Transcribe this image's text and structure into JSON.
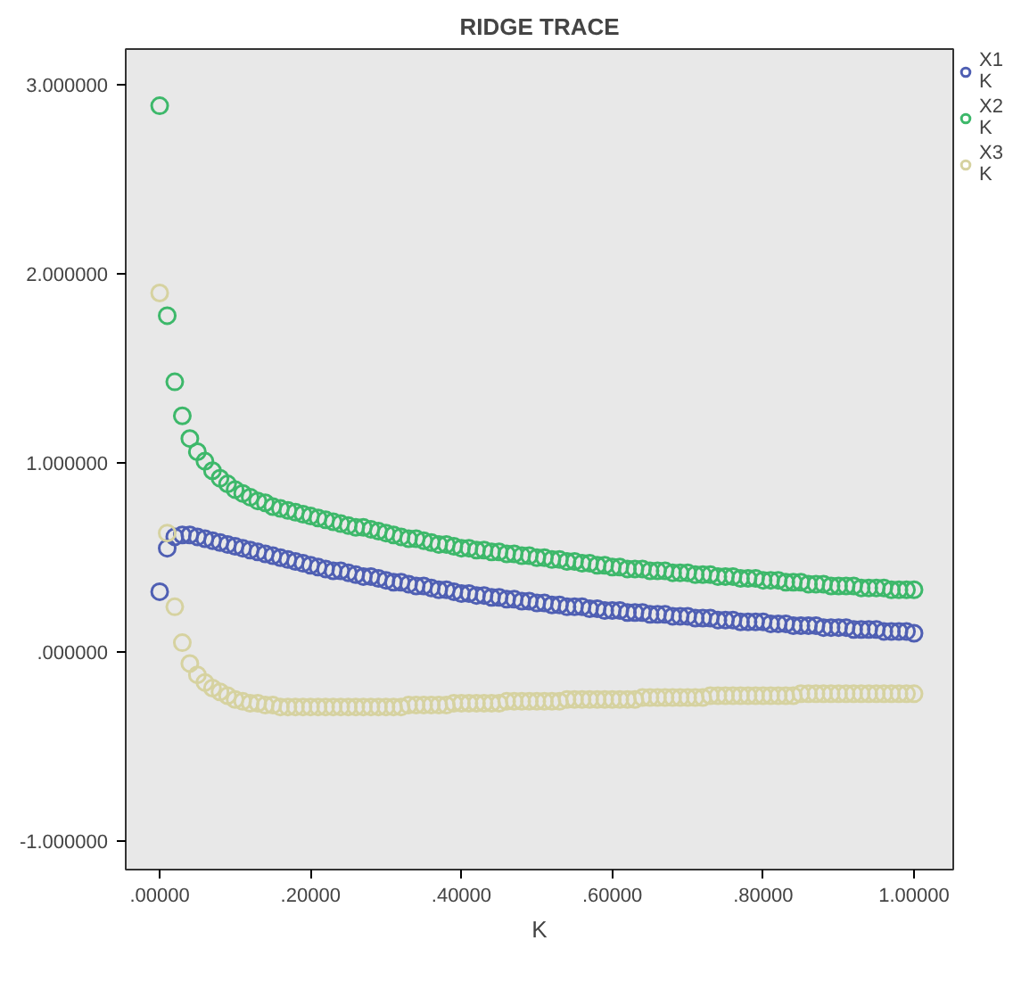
{
  "chart_data": {
    "type": "scatter",
    "title": "RIDGE TRACE",
    "xlabel": "K",
    "marker": "circle",
    "grid": false,
    "legend": "right",
    "x": [
      0,
      0.01,
      0.02,
      0.03,
      0.04,
      0.05,
      0.06,
      0.07,
      0.08,
      0.09,
      0.1,
      0.11,
      0.12,
      0.13,
      0.14,
      0.15,
      0.16,
      0.17,
      0.18,
      0.19,
      0.2,
      0.21,
      0.22,
      0.23,
      0.24,
      0.25,
      0.26,
      0.27,
      0.28,
      0.29,
      0.3,
      0.31,
      0.32,
      0.33,
      0.34,
      0.35,
      0.36,
      0.37,
      0.38,
      0.39,
      0.4,
      0.41,
      0.42,
      0.43,
      0.44,
      0.45,
      0.46,
      0.47,
      0.48,
      0.49,
      0.5,
      0.51,
      0.52,
      0.53,
      0.54,
      0.55,
      0.56,
      0.57,
      0.58,
      0.59,
      0.6,
      0.61,
      0.62,
      0.63,
      0.64,
      0.65,
      0.66,
      0.67,
      0.68,
      0.69,
      0.7,
      0.71,
      0.72,
      0.73,
      0.74,
      0.75,
      0.76,
      0.77,
      0.78,
      0.79,
      0.8,
      0.81,
      0.82,
      0.83,
      0.84,
      0.85,
      0.86,
      0.87,
      0.88,
      0.89,
      0.9,
      0.91,
      0.92,
      0.93,
      0.94,
      0.95,
      0.96,
      0.97,
      0.98,
      0.99,
      1.0
    ],
    "series": [
      {
        "name": "X1\nK",
        "color": "#4f5fb3",
        "values": [
          0.32,
          0.55,
          0.61,
          0.62,
          0.62,
          0.61,
          0.6,
          0.59,
          0.58,
          0.57,
          0.56,
          0.55,
          0.54,
          0.53,
          0.52,
          0.51,
          0.5,
          0.49,
          0.48,
          0.47,
          0.46,
          0.45,
          0.44,
          0.43,
          0.43,
          0.42,
          0.41,
          0.4,
          0.4,
          0.39,
          0.38,
          0.37,
          0.37,
          0.36,
          0.35,
          0.35,
          0.34,
          0.33,
          0.33,
          0.32,
          0.31,
          0.31,
          0.3,
          0.3,
          0.29,
          0.29,
          0.28,
          0.28,
          0.27,
          0.27,
          0.26,
          0.26,
          0.25,
          0.25,
          0.24,
          0.24,
          0.24,
          0.23,
          0.23,
          0.22,
          0.22,
          0.22,
          0.21,
          0.21,
          0.21,
          0.2,
          0.2,
          0.2,
          0.19,
          0.19,
          0.19,
          0.18,
          0.18,
          0.18,
          0.17,
          0.17,
          0.17,
          0.16,
          0.16,
          0.16,
          0.16,
          0.15,
          0.15,
          0.15,
          0.14,
          0.14,
          0.14,
          0.14,
          0.13,
          0.13,
          0.13,
          0.13,
          0.12,
          0.12,
          0.12,
          0.12,
          0.11,
          0.11,
          0.11,
          0.11,
          0.1
        ]
      },
      {
        "name": "X2\nK",
        "color": "#3db86a",
        "values": [
          2.89,
          1.78,
          1.43,
          1.25,
          1.13,
          1.06,
          1.01,
          0.96,
          0.92,
          0.89,
          0.86,
          0.84,
          0.82,
          0.8,
          0.79,
          0.77,
          0.76,
          0.75,
          0.74,
          0.73,
          0.72,
          0.71,
          0.7,
          0.69,
          0.68,
          0.67,
          0.66,
          0.66,
          0.65,
          0.64,
          0.63,
          0.62,
          0.61,
          0.6,
          0.6,
          0.59,
          0.58,
          0.57,
          0.57,
          0.56,
          0.55,
          0.55,
          0.54,
          0.54,
          0.53,
          0.53,
          0.52,
          0.52,
          0.51,
          0.51,
          0.5,
          0.5,
          0.49,
          0.49,
          0.48,
          0.48,
          0.47,
          0.47,
          0.46,
          0.46,
          0.45,
          0.45,
          0.44,
          0.44,
          0.44,
          0.43,
          0.43,
          0.43,
          0.42,
          0.42,
          0.42,
          0.41,
          0.41,
          0.41,
          0.4,
          0.4,
          0.4,
          0.39,
          0.39,
          0.39,
          0.38,
          0.38,
          0.38,
          0.37,
          0.37,
          0.37,
          0.36,
          0.36,
          0.36,
          0.35,
          0.35,
          0.35,
          0.35,
          0.34,
          0.34,
          0.34,
          0.34,
          0.33,
          0.33,
          0.33,
          0.33
        ]
      },
      {
        "name": "X3\nK",
        "color": "#d6d2a0",
        "values": [
          1.9,
          0.63,
          0.24,
          0.05,
          -0.06,
          -0.12,
          -0.16,
          -0.19,
          -0.21,
          -0.23,
          -0.25,
          -0.26,
          -0.27,
          -0.27,
          -0.28,
          -0.28,
          -0.29,
          -0.29,
          -0.29,
          -0.29,
          -0.29,
          -0.29,
          -0.29,
          -0.29,
          -0.29,
          -0.29,
          -0.29,
          -0.29,
          -0.29,
          -0.29,
          -0.29,
          -0.29,
          -0.29,
          -0.28,
          -0.28,
          -0.28,
          -0.28,
          -0.28,
          -0.28,
          -0.27,
          -0.27,
          -0.27,
          -0.27,
          -0.27,
          -0.27,
          -0.27,
          -0.26,
          -0.26,
          -0.26,
          -0.26,
          -0.26,
          -0.26,
          -0.26,
          -0.26,
          -0.25,
          -0.25,
          -0.25,
          -0.25,
          -0.25,
          -0.25,
          -0.25,
          -0.25,
          -0.25,
          -0.25,
          -0.24,
          -0.24,
          -0.24,
          -0.24,
          -0.24,
          -0.24,
          -0.24,
          -0.24,
          -0.24,
          -0.23,
          -0.23,
          -0.23,
          -0.23,
          -0.23,
          -0.23,
          -0.23,
          -0.23,
          -0.23,
          -0.23,
          -0.23,
          -0.23,
          -0.22,
          -0.22,
          -0.22,
          -0.22,
          -0.22,
          -0.22,
          -0.22,
          -0.22,
          -0.22,
          -0.22,
          -0.22,
          -0.22,
          -0.22,
          -0.22,
          -0.22,
          -0.22
        ]
      }
    ],
    "xlim": [
      -0.045,
      1.052
    ],
    "ylim": [
      -1.15,
      3.19
    ],
    "xticks": [
      {
        "value": 0,
        "label": ".00000"
      },
      {
        "value": 0.2,
        "label": ".20000"
      },
      {
        "value": 0.4,
        "label": ".40000"
      },
      {
        "value": 0.6,
        "label": ".60000"
      },
      {
        "value": 0.8,
        "label": ".80000"
      },
      {
        "value": 1.0,
        "label": "1.00000"
      }
    ],
    "yticks": [
      {
        "value": -1,
        "label": "-1.000000"
      },
      {
        "value": 0,
        "label": ".000000"
      },
      {
        "value": 1,
        "label": "1.000000"
      },
      {
        "value": 2,
        "label": "2.000000"
      },
      {
        "value": 3,
        "label": "3.000000"
      }
    ]
  }
}
